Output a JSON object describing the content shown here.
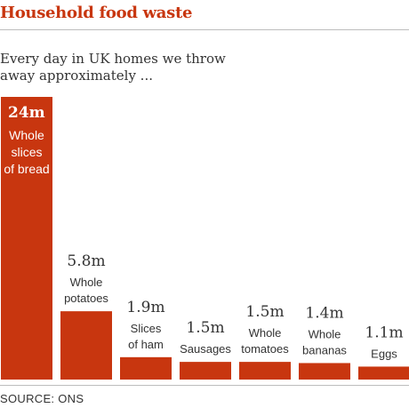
{
  "title": "Household food waste",
  "subtitle": "Every day in UK homes we throw away approximately ...",
  "source": "SOURCE: ONS",
  "colors": {
    "title": "#c8360f",
    "bar": "#c8360f",
    "value_text": "#333333",
    "label_text": "#333333",
    "label_text_inside": "#ffffff"
  },
  "chart_data": {
    "type": "bar",
    "title": "Household food waste",
    "subtitle": "Every day in UK homes we throw away approximately ...",
    "categories": [
      "Whole slices of bread",
      "Whole potatoes",
      "Slices of ham",
      "Sausages",
      "Whole tomatoes",
      "Whole bananas",
      "Eggs"
    ],
    "category_lines": [
      [
        "Whole",
        "slices",
        "of bread"
      ],
      [
        "Whole",
        "potatoes"
      ],
      [
        "Slices",
        "of ham"
      ],
      [
        "Sausages"
      ],
      [
        "Whole",
        "tomatoes"
      ],
      [
        "Whole",
        "bananas"
      ],
      [
        "Eggs"
      ]
    ],
    "values": [
      24,
      5.8,
      1.9,
      1.5,
      1.5,
      1.4,
      1.1
    ],
    "value_labels": [
      "24m",
      "5.8m",
      "1.9m",
      "1.5m",
      "1.5m",
      "1.4m",
      "1.1m"
    ],
    "unit": "million",
    "ylim": [
      0,
      24
    ],
    "grid": false,
    "legend": "none"
  }
}
